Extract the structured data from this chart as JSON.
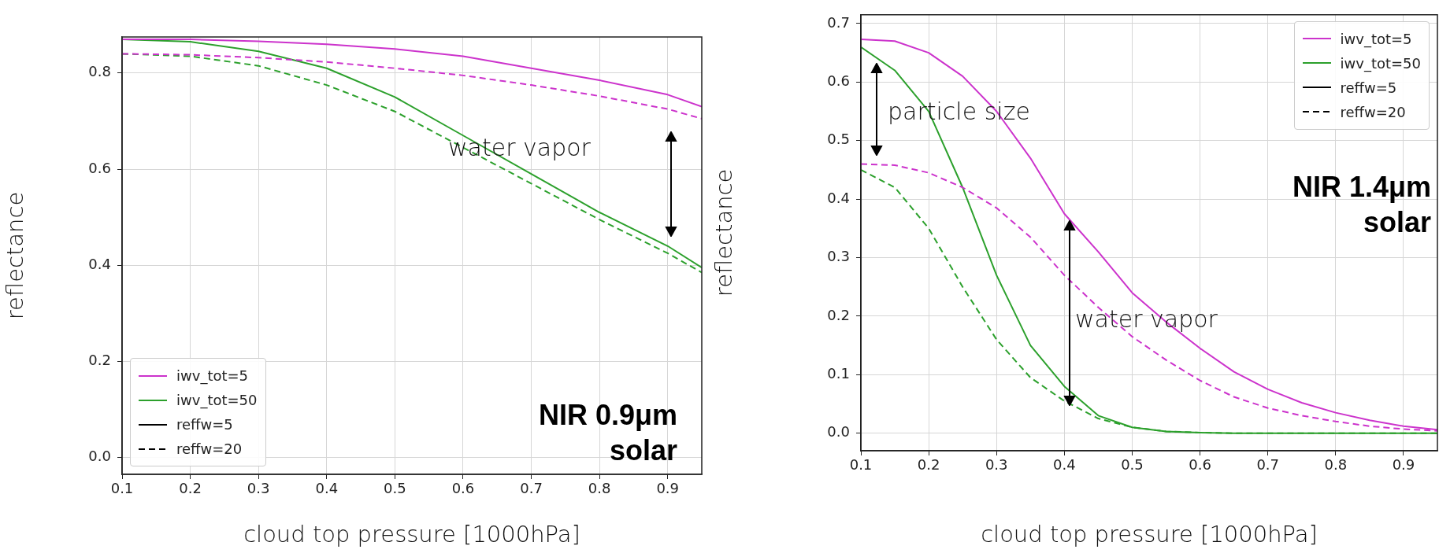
{
  "chart_data": [
    {
      "type": "line",
      "xlabel": "cloud top pressure [1000hPa]",
      "ylabel": "reflectance",
      "x": [
        0.1,
        0.2,
        0.3,
        0.4,
        0.5,
        0.6,
        0.7,
        0.8,
        0.9,
        0.95
      ],
      "xlim": [
        0.1,
        0.95
      ],
      "ylim": [
        -0.035,
        0.875
      ],
      "xticks": [
        0.1,
        0.2,
        0.3,
        0.4,
        0.5,
        0.6,
        0.7,
        0.8,
        0.9
      ],
      "yticks": [
        {
          "value": 0,
          "label": "0.0"
        },
        0.2,
        0.4,
        0.6,
        0.8
      ],
      "grid": true,
      "legend": "bottom left",
      "marker": "none",
      "series": [
        {
          "color": "#cc33cc",
          "line_style": "solid",
          "values": [
            0.87,
            0.87,
            0.866,
            0.86,
            0.85,
            0.835,
            0.81,
            0.785,
            0.755,
            0.73
          ]
        },
        {
          "color": "#cc33cc",
          "line_style": "dashed",
          "values": [
            0.84,
            0.838,
            0.832,
            0.823,
            0.81,
            0.795,
            0.775,
            0.752,
            0.725,
            0.705
          ]
        },
        {
          "color": "#2ca02c",
          "line_style": "solid",
          "values": [
            0.87,
            0.865,
            0.845,
            0.81,
            0.75,
            0.67,
            0.59,
            0.51,
            0.44,
            0.395
          ]
        },
        {
          "color": "#2ca02c",
          "line_style": "dashed",
          "values": [
            0.84,
            0.835,
            0.815,
            0.775,
            0.72,
            0.645,
            0.57,
            0.495,
            0.425,
            0.385
          ]
        },
        {
          "name": "iwv_tot=5",
          "color": "#cc33cc",
          "line_style": "solid",
          "values": [
            null,
            null,
            null,
            null,
            null,
            null,
            null,
            null,
            null,
            null
          ]
        },
        {
          "name": "iwv_tot=50",
          "color": "#2ca02c",
          "line_style": "solid",
          "values": [
            null,
            null,
            null,
            null,
            null,
            null,
            null,
            null,
            null,
            null
          ]
        },
        {
          "name": "reffw=5",
          "color": "#000000",
          "line_style": "solid",
          "values": [
            null,
            null,
            null,
            null,
            null,
            null,
            null,
            null,
            null,
            null
          ]
        },
        {
          "name": "reffw=20",
          "color": "#000000",
          "line_style": "dashed",
          "values": [
            null,
            null,
            null,
            null,
            null,
            null,
            null,
            null,
            null,
            null
          ]
        }
      ],
      "annotations": [
        "water vapor",
        "NIR 0.9μm\nsolar"
      ]
    },
    {
      "type": "line",
      "xlabel": "cloud top pressure [1000hPa]",
      "ylabel": "reflectance",
      "x": [
        0.1,
        0.15,
        0.2,
        0.25,
        0.3,
        0.35,
        0.4,
        0.45,
        0.5,
        0.55,
        0.6,
        0.65,
        0.7,
        0.75,
        0.8,
        0.85,
        0.9,
        0.95
      ],
      "xlim": [
        0.1,
        0.95
      ],
      "ylim": [
        -0.03,
        0.715
      ],
      "xticks": [
        0.1,
        0.2,
        0.3,
        0.4,
        0.5,
        0.6,
        0.7,
        0.8,
        0.9
      ],
      "yticks": [
        {
          "value": 0,
          "label": "0.0"
        },
        0.1,
        0.2,
        0.3,
        0.4,
        0.5,
        0.6,
        0.7
      ],
      "grid": true,
      "legend": "top right",
      "marker": "none",
      "series": [
        {
          "color": "#cc33cc",
          "line_style": "solid",
          "values": [
            0.673,
            0.67,
            0.65,
            0.61,
            0.55,
            0.47,
            0.375,
            0.31,
            0.24,
            0.19,
            0.145,
            0.105,
            0.075,
            0.052,
            0.035,
            0.022,
            0.012,
            0.006
          ]
        },
        {
          "color": "#cc33cc",
          "line_style": "dashed",
          "values": [
            0.46,
            0.458,
            0.445,
            0.42,
            0.385,
            0.335,
            0.27,
            0.215,
            0.165,
            0.125,
            0.09,
            0.062,
            0.043,
            0.03,
            0.02,
            0.012,
            0.007,
            0.004
          ]
        },
        {
          "color": "#2ca02c",
          "line_style": "solid",
          "values": [
            0.66,
            0.62,
            0.55,
            0.42,
            0.27,
            0.15,
            0.08,
            0.03,
            0.01,
            0.003,
            0.001,
            0,
            0,
            0,
            0,
            0,
            0,
            0
          ]
        },
        {
          "color": "#2ca02c",
          "line_style": "dashed",
          "values": [
            0.45,
            0.42,
            0.35,
            0.25,
            0.16,
            0.095,
            0.055,
            0.025,
            0.01,
            0.003,
            0.001,
            0,
            0,
            0,
            0,
            0,
            0,
            0
          ]
        },
        {
          "name": "iwv_tot=5",
          "color": "#cc33cc",
          "line_style": "solid",
          "values": [
            null,
            null,
            null,
            null,
            null,
            null,
            null,
            null,
            null,
            null,
            null,
            null,
            null,
            null,
            null,
            null,
            null,
            null
          ]
        },
        {
          "name": "iwv_tot=50",
          "color": "#2ca02c",
          "line_style": "solid",
          "values": [
            null,
            null,
            null,
            null,
            null,
            null,
            null,
            null,
            null,
            null,
            null,
            null,
            null,
            null,
            null,
            null,
            null,
            null
          ]
        },
        {
          "name": "reffw=5",
          "color": "#000000",
          "line_style": "solid",
          "values": [
            null,
            null,
            null,
            null,
            null,
            null,
            null,
            null,
            null,
            null,
            null,
            null,
            null,
            null,
            null,
            null,
            null,
            null
          ]
        },
        {
          "name": "reffw=20",
          "color": "#000000",
          "line_style": "dashed",
          "values": [
            null,
            null,
            null,
            null,
            null,
            null,
            null,
            null,
            null,
            null,
            null,
            null,
            null,
            null,
            null,
            null,
            null,
            null
          ]
        }
      ],
      "annotations": [
        "particle size",
        "water vapor",
        "NIR 1.4μm\nsolar"
      ]
    }
  ]
}
